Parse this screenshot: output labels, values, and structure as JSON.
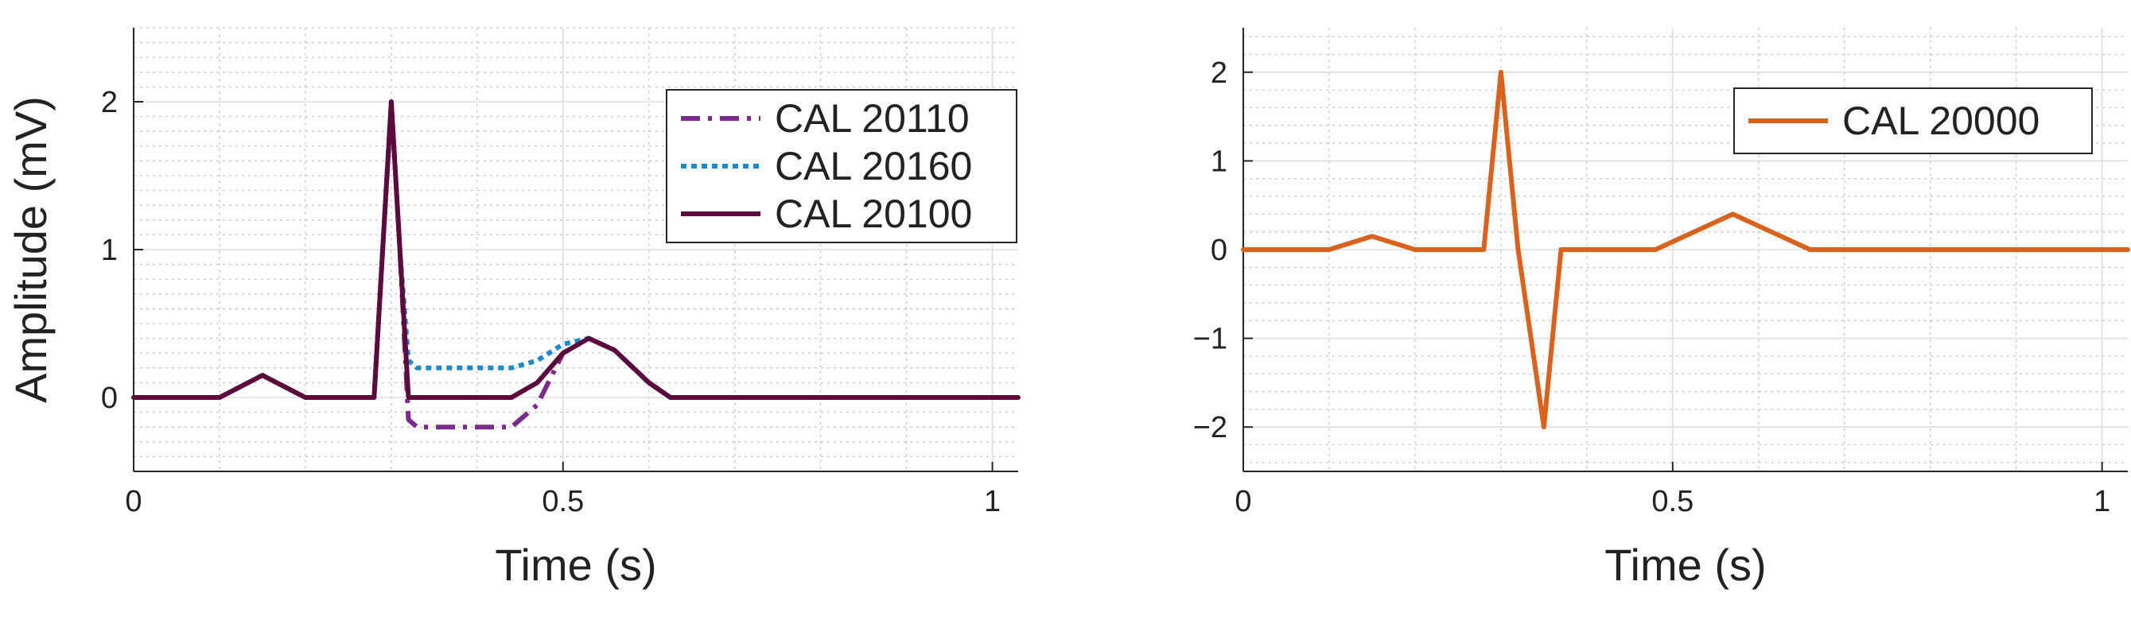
{
  "chart_data": [
    {
      "type": "line",
      "title": "",
      "xlabel": "Time (s)",
      "ylabel": "Amplitude (mV)",
      "xlim": [
        0,
        1.03
      ],
      "ylim": [
        -0.5,
        2.5
      ],
      "xticks": [
        0,
        0.5,
        1
      ],
      "xtick_labels": [
        "0",
        "0.5",
        "1"
      ],
      "yticks": [
        0,
        1,
        2
      ],
      "ytick_labels": [
        "0",
        "1",
        "2"
      ],
      "grid": "on",
      "legend_position": "top-right",
      "series": [
        {
          "name": "CAL 20110",
          "color": "#7b2a8e",
          "style": "dash-dot",
          "x": [
            0,
            0.1,
            0.125,
            0.15,
            0.175,
            0.2,
            0.28,
            0.29,
            0.3,
            0.31,
            0.32,
            0.33,
            0.44,
            0.47,
            0.5,
            0.53,
            0.56,
            0.6,
            0.625,
            0.65,
            1.03
          ],
          "y": [
            0,
            0,
            0.075,
            0.15,
            0.075,
            0,
            0,
            1.0,
            2.0,
            1.0,
            -0.15,
            -0.2,
            -0.2,
            -0.05,
            0.3,
            0.4,
            0.32,
            0.1,
            0,
            0,
            0
          ]
        },
        {
          "name": "CAL 20160",
          "color": "#1f8ac8",
          "style": "dotted",
          "x": [
            0,
            0.1,
            0.125,
            0.15,
            0.175,
            0.2,
            0.28,
            0.29,
            0.3,
            0.31,
            0.32,
            0.33,
            0.44,
            0.47,
            0.5,
            0.53,
            0.56,
            0.6,
            0.625,
            0.65,
            1.03
          ],
          "y": [
            0,
            0,
            0.075,
            0.15,
            0.075,
            0,
            0,
            1.0,
            2.0,
            1.0,
            0.25,
            0.2,
            0.2,
            0.25,
            0.36,
            0.4,
            0.32,
            0.1,
            0,
            0,
            0
          ]
        },
        {
          "name": "CAL 20100",
          "color": "#5c0c3c",
          "style": "solid",
          "x": [
            0,
            0.1,
            0.125,
            0.15,
            0.175,
            0.2,
            0.28,
            0.29,
            0.3,
            0.31,
            0.32,
            0.44,
            0.47,
            0.5,
            0.53,
            0.56,
            0.6,
            0.625,
            0.65,
            1.03
          ],
          "y": [
            0,
            0,
            0.075,
            0.15,
            0.075,
            0,
            0,
            1.0,
            2.0,
            1.0,
            0,
            0,
            0.1,
            0.3,
            0.4,
            0.32,
            0.1,
            0,
            0,
            0
          ]
        }
      ]
    },
    {
      "type": "line",
      "title": "",
      "xlabel": "Time (s)",
      "ylabel": "",
      "xlim": [
        0,
        1.03
      ],
      "ylim": [
        -2.5,
        2.5
      ],
      "xticks": [
        0,
        0.5,
        1
      ],
      "xtick_labels": [
        "0",
        "0.5",
        "1"
      ],
      "yticks": [
        -2,
        -1,
        0,
        1,
        2
      ],
      "ytick_labels": [
        "−2",
        "−1",
        "0",
        "1",
        "2"
      ],
      "grid": "on",
      "legend_position": "top-right",
      "series": [
        {
          "name": "CAL 20000",
          "color": "#d9621c",
          "style": "solid",
          "x": [
            0,
            0.1,
            0.125,
            0.15,
            0.175,
            0.2,
            0.28,
            0.29,
            0.3,
            0.31,
            0.32,
            0.335,
            0.35,
            0.36,
            0.37,
            0.48,
            0.525,
            0.57,
            0.615,
            0.66,
            1.03
          ],
          "y": [
            0,
            0,
            0.075,
            0.15,
            0.075,
            0,
            0,
            1.0,
            2.0,
            1.0,
            0,
            -1.0,
            -2.0,
            -1.0,
            0,
            0,
            0.2,
            0.4,
            0.2,
            0,
            0
          ]
        }
      ]
    }
  ]
}
